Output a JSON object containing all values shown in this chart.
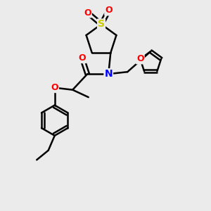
{
  "bg_color": "#ebebeb",
  "atom_colors": {
    "O": "#ff0000",
    "N": "#0000ff",
    "S": "#cccc00",
    "C": "#000000"
  },
  "bond_color": "#000000",
  "bond_width": 1.8,
  "font_size_atom": 9
}
